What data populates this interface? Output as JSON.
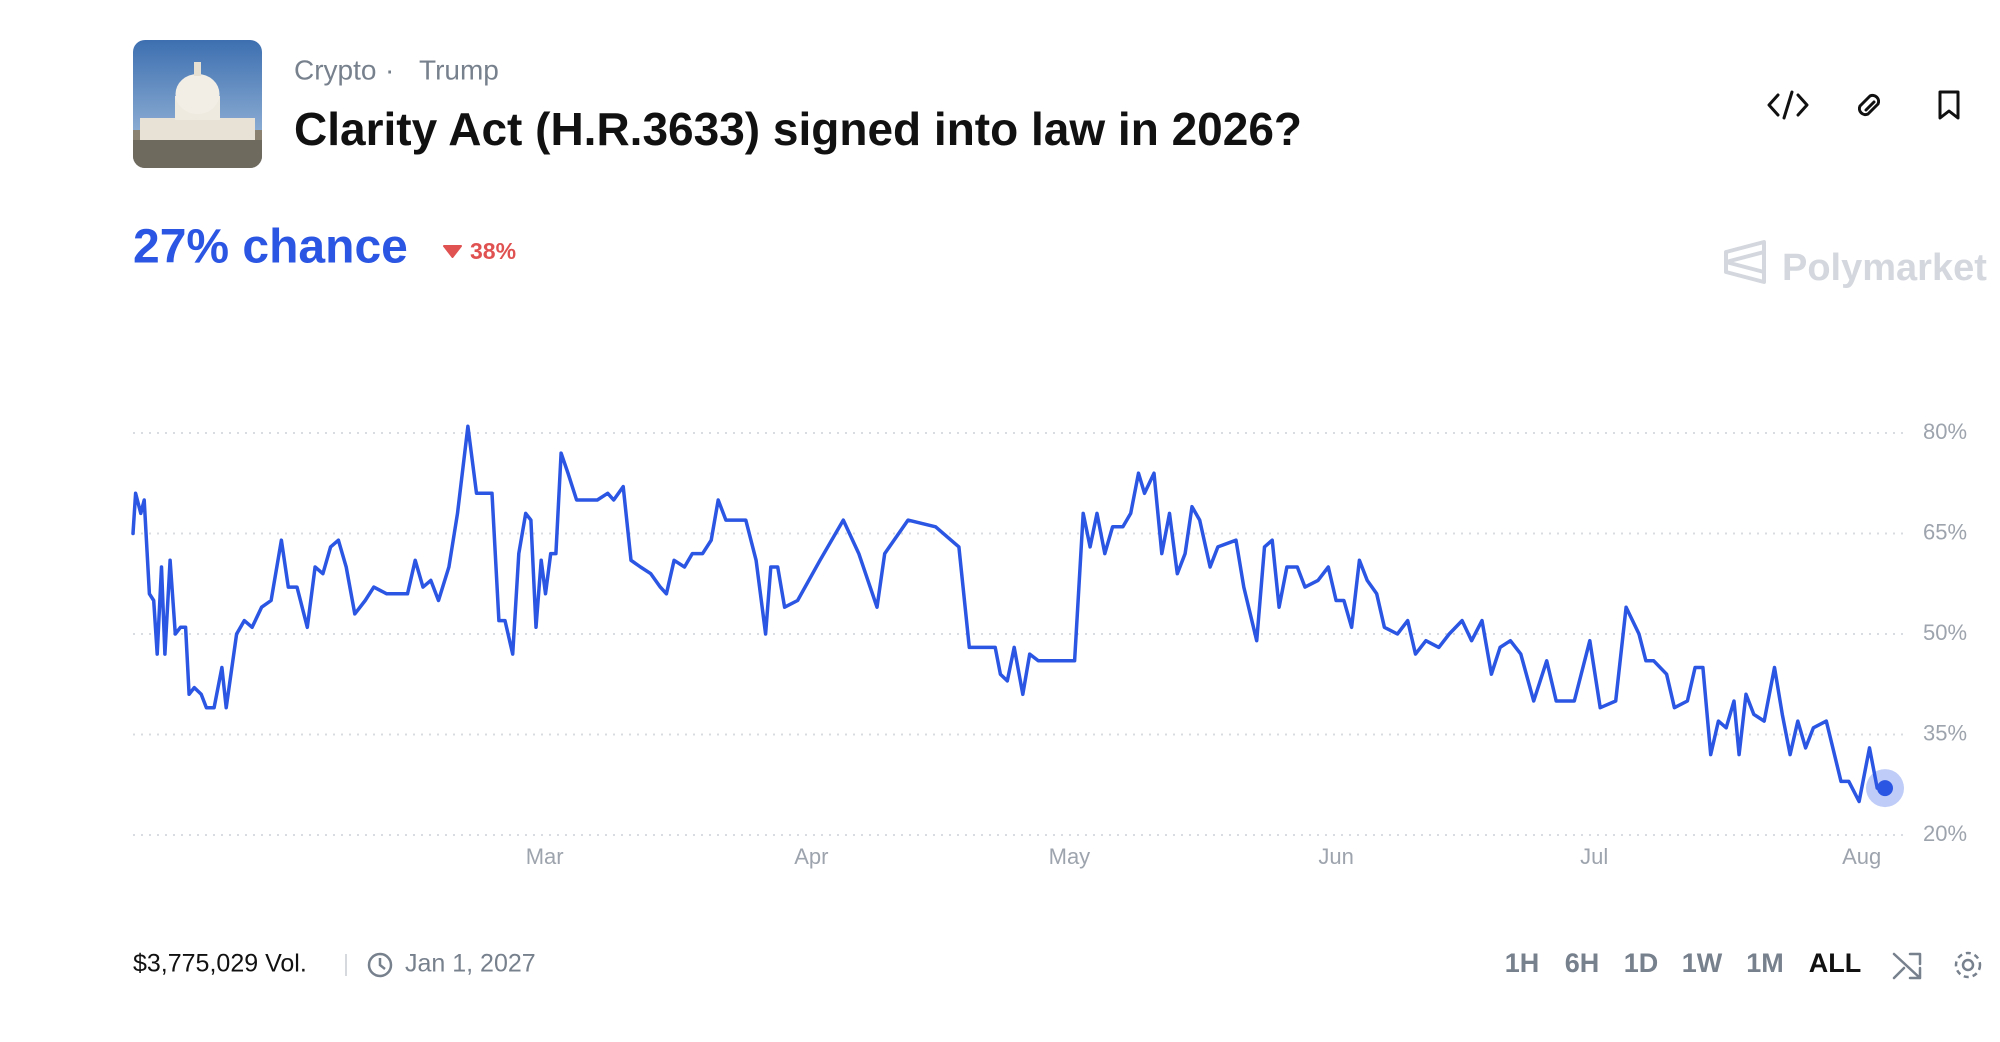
{
  "header": {
    "category": "Crypto",
    "separator": "·",
    "tag": "Trump",
    "title": "Clarity Act (H.R.3633) signed into law in 2026?"
  },
  "odds": {
    "chance": "27% chance",
    "change": "38%"
  },
  "brand": "Polymarket",
  "footer": {
    "volume": "$3,775,029 Vol.",
    "end_date": "Jan 1, 2027",
    "ranges": [
      "1H",
      "6H",
      "1D",
      "1W",
      "1M",
      "ALL"
    ],
    "active_range": "ALL"
  },
  "chart_data": {
    "type": "line",
    "color": "#2b55e3",
    "x": [
      0,
      0.3,
      0.9,
      1.3,
      1.9,
      2.4,
      2.8,
      3.3,
      3.7,
      4.3,
      4.9,
      5.5,
      6.1,
      6.5,
      7.1,
      7.9,
      8.5,
      9.4,
      10.3,
      10.8,
      12,
      12.9,
      13.8,
      14.9,
      16,
      17.2,
      18,
      19,
      20.2,
      21.1,
      22,
      22.9,
      23.8,
      24.7,
      25.7,
      26.9,
      27.9,
      29.4,
      30.9,
      31.8,
      32.7,
      33.6,
      34.5,
      35.4,
      36.6,
      37.6,
      38.8,
      39.8,
      41.6,
      42.4,
      43.1,
      44,
      44.7,
      45.5,
      46.1,
      46.7,
      47.3,
      47.8,
      48.4,
      49,
      49.6,
      50.4,
      51.4,
      52.6,
      53.8,
      55,
      55.7,
      56.8,
      57.7,
      58.8,
      60,
      61.1,
      61.8,
      62.7,
      63.9,
      64.8,
      66,
      67,
      67.8,
      68.7,
      71,
      72.2,
      73.3,
      73.9,
      74.7,
      75.5,
      77,
      79.6,
      82.3,
      84.1,
      86.2,
      87.1,
      89.8,
      93,
      95.7,
      96.9,
      99.9,
      100.5,
      101.3,
      102.1,
      103.1,
      103.9,
      104.9,
      106.1,
      107.3,
      109.1,
      110.1,
      110.9,
      111.7,
      112.6,
      113.5,
      114.7,
      115.6,
      116.5,
      117.2,
      118.3,
      119.2,
      120.1,
      121,
      121.9,
      122.7,
      123.6,
      124.8,
      125.7,
      127.8,
      128.7,
      130.2,
      131.1,
      132,
      132.8,
      133.7,
      134.9,
      135.8,
      137.3,
      138.5,
      139.4,
      140.3,
      141.2,
      142.1,
      143,
      144.1,
      145,
      146.5,
      147.7,
      148.6,
      149.8,
      151.3,
      152.5,
      154,
      155.1,
      156.3,
      157.4,
      158.4,
      159.6,
      160.8,
      162.3,
      163.8,
      164.9,
      167,
      168.8,
      170,
      171.8,
      173,
      174.5,
      175.3,
      176.2,
      177.7,
      178.6,
      180.1,
      181,
      181.9,
      182.8,
      183.7,
      184.6,
      185.5,
      186.1,
      186.9,
      187.8,
      189,
      190.2,
      191.1,
      192,
      192.9,
      193.8,
      194.7,
      196.2,
      197.9,
      198.8,
      200,
      201.2,
      202.1,
      203
    ],
    "values": [
      65,
      71,
      68,
      70,
      56,
      55,
      47,
      60,
      47,
      61,
      50,
      51,
      51,
      41,
      42,
      41,
      39,
      39,
      45,
      39,
      50,
      52,
      51,
      54,
      55,
      64,
      57,
      57,
      51,
      60,
      59,
      63,
      64,
      60,
      53,
      55,
      57,
      56,
      56,
      56,
      61,
      57,
      58,
      55,
      60,
      68,
      81,
      71,
      71,
      52,
      52,
      47,
      62,
      68,
      67,
      51,
      61,
      56,
      62,
      62,
      77,
      74,
      70,
      70,
      70,
      71,
      70,
      72,
      61,
      60,
      59,
      57,
      56,
      61,
      60,
      62,
      62,
      64,
      70,
      67,
      67,
      61,
      50,
      60,
      60,
      54,
      55,
      61,
      67,
      62,
      54,
      62,
      67,
      66,
      63,
      48,
      48,
      44,
      43,
      48,
      41,
      47,
      46,
      46,
      46,
      46,
      68,
      63,
      68,
      62,
      66,
      66,
      68,
      74,
      71,
      74,
      62,
      68,
      59,
      62,
      69,
      67,
      60,
      63,
      64,
      57,
      49,
      63,
      64,
      54,
      60,
      60,
      57,
      58,
      60,
      55,
      55,
      51,
      61,
      58,
      56,
      51,
      50,
      52,
      47,
      49,
      48,
      50,
      52,
      49,
      52,
      44,
      48,
      49,
      47,
      40,
      46,
      40,
      40,
      49,
      39,
      40,
      54,
      50,
      46,
      46,
      44,
      39,
      40,
      45,
      45,
      32,
      37,
      36,
      40,
      32,
      41,
      38,
      37,
      45,
      38,
      32,
      37,
      33,
      36,
      37,
      28,
      28,
      25,
      33,
      27,
      27
    ],
    "xlim": [
      0,
      203
    ],
    "xticks": [
      {
        "value": 47.7,
        "label": "Mar"
      },
      {
        "value": 78.6,
        "label": "Apr"
      },
      {
        "value": 108.5,
        "label": "May"
      },
      {
        "value": 139.4,
        "label": "Jun"
      },
      {
        "value": 169.3,
        "label": "Jul"
      },
      {
        "value": 200.3,
        "label": "Aug"
      }
    ],
    "ylim": [
      20,
      80
    ],
    "yticks": [
      {
        "value": 20,
        "label": "20%"
      },
      {
        "value": 35,
        "label": "35%"
      },
      {
        "value": 50,
        "label": "50%"
      },
      {
        "value": 65,
        "label": "65%"
      },
      {
        "value": 80,
        "label": "80%"
      }
    ],
    "grid": true
  }
}
